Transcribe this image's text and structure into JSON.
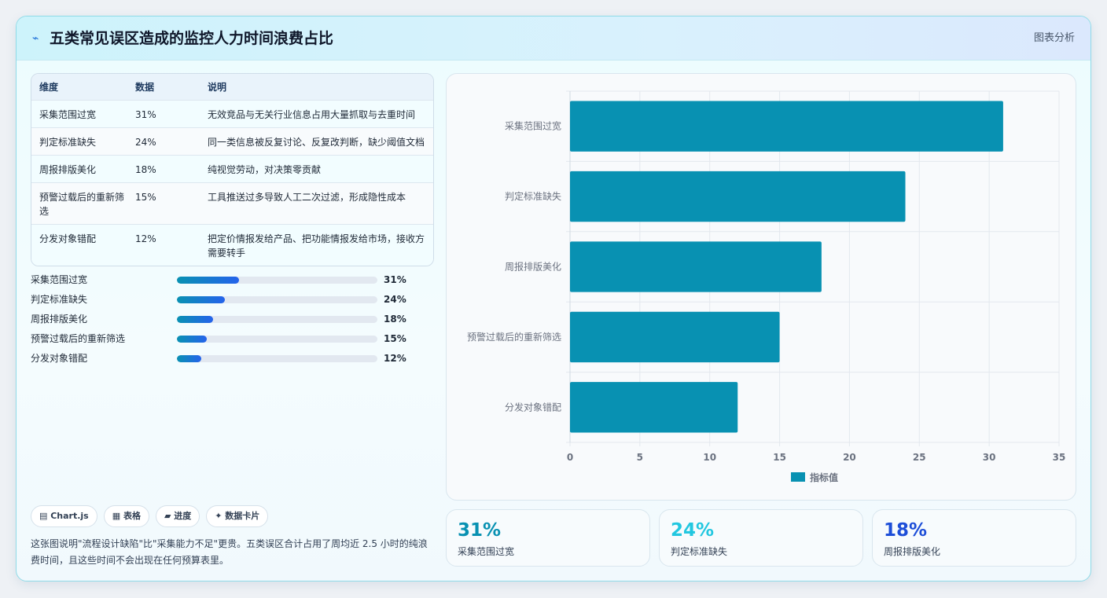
{
  "header": {
    "icon": "chart-line-icon",
    "title": "五类常见误区造成的监控人力时间浪费占比",
    "tag": "图表分析"
  },
  "table": {
    "headers": [
      "维度",
      "数据",
      "说明"
    ],
    "rows": [
      {
        "dim": "采集范围过宽",
        "value": "31%",
        "desc": "无效竞品与无关行业信息占用大量抓取与去重时间"
      },
      {
        "dim": "判定标准缺失",
        "value": "24%",
        "desc": "同一类信息被反复讨论、反复改判断，缺少阈值文档"
      },
      {
        "dim": "周报排版美化",
        "value": "18%",
        "desc": "纯视觉劳动，对决策零贡献"
      },
      {
        "dim": "预警过载后的重新筛选",
        "value": "15%",
        "desc": "工具推送过多导致人工二次过滤，形成隐性成本"
      },
      {
        "dim": "分发对象错配",
        "value": "12%",
        "desc": "把定价情报发给产品、把功能情报发给市场，接收方需要转手"
      }
    ]
  },
  "progress": [
    {
      "label": "采集范围过宽",
      "pct": 31,
      "text": "31%"
    },
    {
      "label": "判定标准缺失",
      "pct": 24,
      "text": "24%"
    },
    {
      "label": "周报排版美化",
      "pct": 18,
      "text": "18%"
    },
    {
      "label": "预警过载后的重新筛选",
      "pct": 15,
      "text": "15%"
    },
    {
      "label": "分发对象错配",
      "pct": 12,
      "text": "12%"
    }
  ],
  "chips": [
    "▤ Chart.js",
    "▦ 表格",
    "▰ 进度",
    "✦ 数据卡片"
  ],
  "note": "这张图说明\"流程设计缺陷\"比\"采集能力不足\"更贵。五类误区合计占用了周均近 2.5 小时的纯浪费时间，且这些时间不会出现在任何预算表里。",
  "chart_data": {
    "type": "bar",
    "orientation": "horizontal",
    "categories": [
      "采集范围过宽",
      "判定标准缺失",
      "周报排版美化",
      "预警过载后的重新筛选",
      "分发对象错配"
    ],
    "series": [
      {
        "name": "指标值",
        "values": [
          31,
          24,
          18,
          15,
          12
        ],
        "color": "#0891b2"
      }
    ],
    "xlim": [
      0,
      35
    ],
    "xticks": [
      0,
      5,
      10,
      15,
      20,
      25,
      30,
      35
    ],
    "grid": true,
    "legend": "bottom"
  },
  "kpis": [
    {
      "value": "31%",
      "label": "采集范围过宽",
      "color": "#0891b2"
    },
    {
      "value": "24%",
      "label": "判定标准缺失",
      "color": "#22c7e0"
    },
    {
      "value": "18%",
      "label": "周报排版美化",
      "color": "#1d4ed8"
    }
  ]
}
